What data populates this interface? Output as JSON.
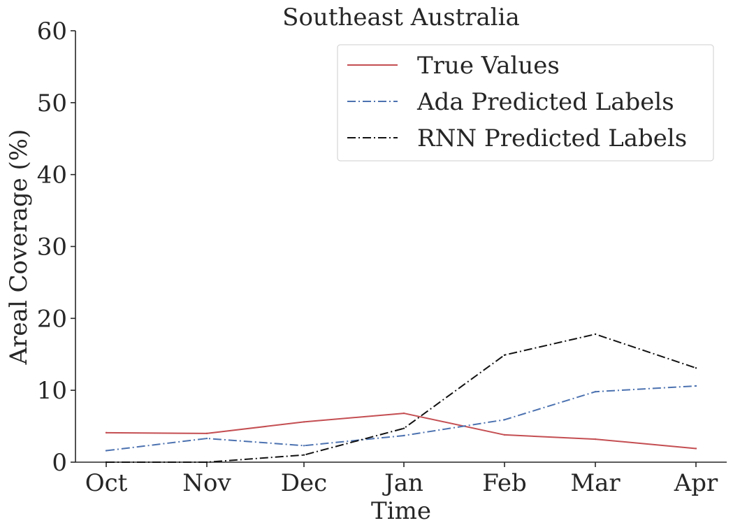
{
  "chart_data": {
    "type": "line",
    "title": "Southeast Australia",
    "xlabel": "Time",
    "ylabel": "Areal Coverage (%)",
    "categories": [
      "Oct",
      "Nov",
      "Dec",
      "Jan",
      "Feb",
      "Mar",
      "Apr"
    ],
    "x": [
      "2000-10-01",
      "2000-11-01",
      "2000-12-01",
      "2001-01-01",
      "2001-02-01",
      "2001-03-01",
      "2001-04-01"
    ],
    "ylim": [
      0,
      60
    ],
    "yticks": [
      0,
      10,
      20,
      30,
      40,
      50,
      60
    ],
    "grid": false,
    "legend_position": "top-right",
    "series": [
      {
        "name": "True Values",
        "color": "#c44e52",
        "style": "solid",
        "values": [
          4.1,
          4.0,
          5.6,
          6.8,
          3.8,
          3.2,
          1.9
        ]
      },
      {
        "name": "Ada Predicted Labels",
        "color": "#4c72b0",
        "style": "dashdot",
        "values": [
          1.6,
          3.3,
          2.3,
          3.7,
          5.9,
          9.8,
          10.6
        ]
      },
      {
        "name": "RNN Predicted Labels",
        "color": "#111111",
        "style": "dashdot",
        "values": [
          0.0,
          0.0,
          1.0,
          4.7,
          14.9,
          17.8,
          13.1
        ]
      }
    ]
  }
}
